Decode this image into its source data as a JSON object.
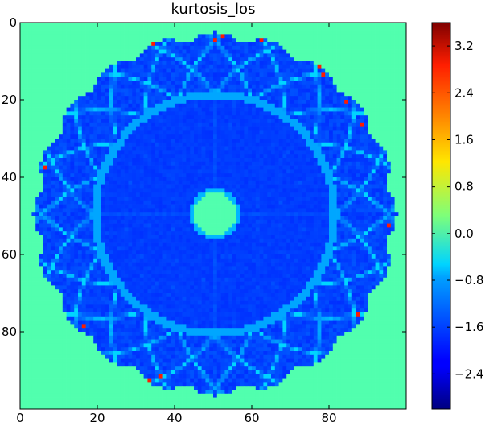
{
  "chart_data": {
    "type": "heatmap",
    "title": "kurtosis_los",
    "xlabel": "",
    "ylabel": "",
    "xlim": [
      0,
      99
    ],
    "ylim": [
      99,
      0
    ],
    "x_ticks": [
      0,
      20,
      40,
      60,
      80
    ],
    "y_ticks": [
      0,
      20,
      40,
      60,
      80
    ],
    "grid": false,
    "colormap": "jet",
    "colorbar": {
      "range": [
        -3.0,
        3.6
      ],
      "ticks": [
        -2.4,
        -1.6,
        -0.8,
        0.0,
        0.8,
        1.6,
        2.4,
        3.2
      ],
      "tick_labels": [
        "−2.4",
        "−1.6",
        "−0.8",
        "0.0",
        "0.8",
        "1.6",
        "2.4",
        "3.2"
      ]
    },
    "field": {
      "grid_size": [
        100,
        100
      ],
      "center": [
        50,
        49
      ],
      "background_value": 0.0,
      "disk_value": -1.75,
      "outer_radius": 47,
      "inner_ring_radius": 31,
      "hole_radius": 5.5,
      "hole_value": 0.0,
      "ring_line_value": -1.1,
      "lobe_count": 20
    }
  }
}
